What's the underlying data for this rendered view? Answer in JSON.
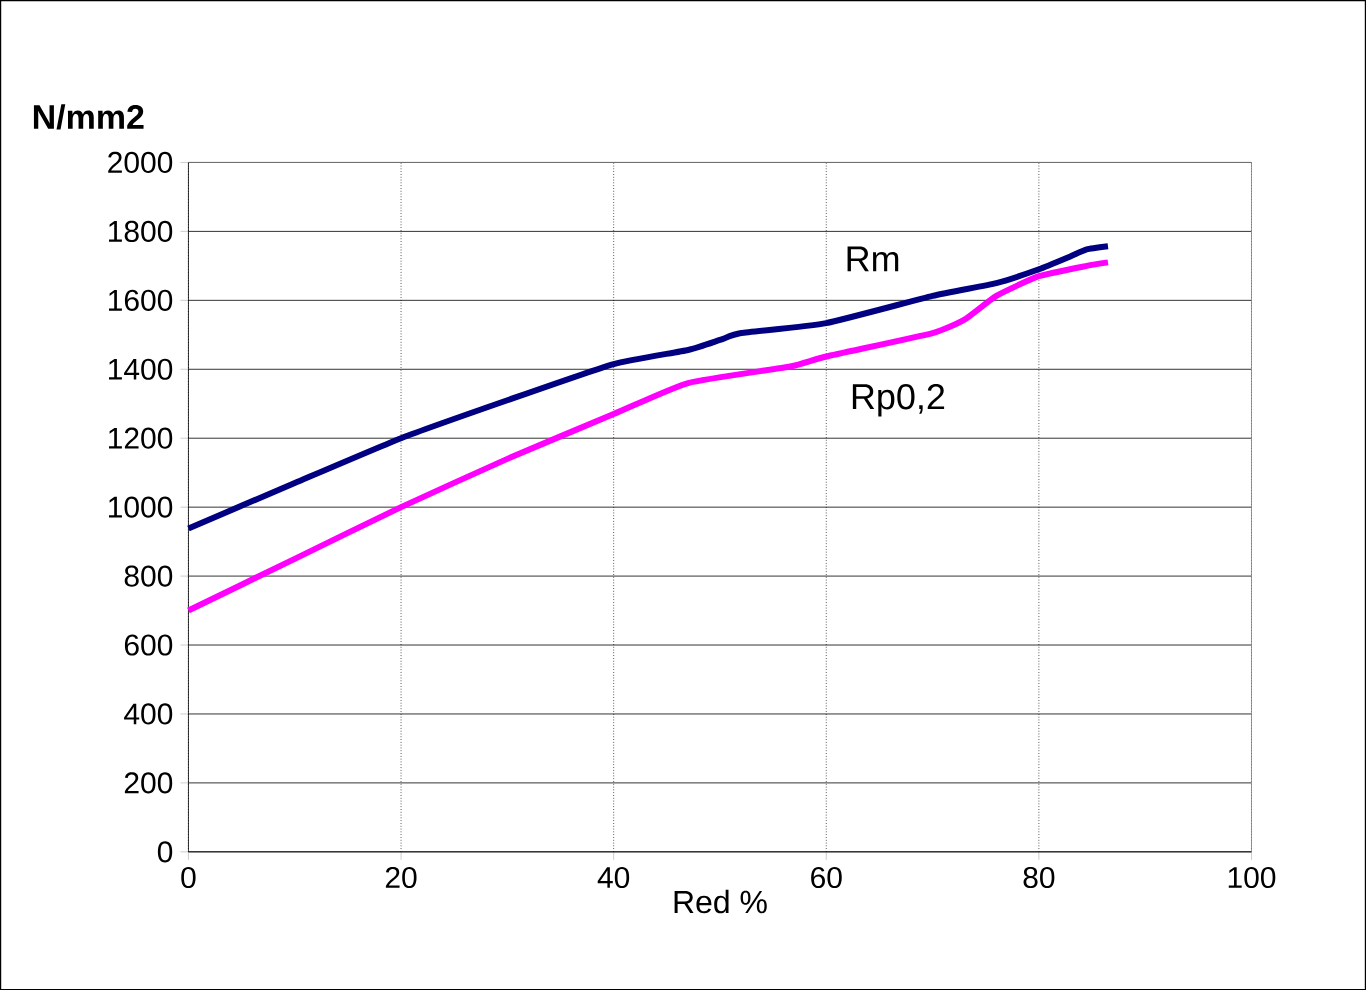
{
  "chart_data": {
    "type": "line",
    "title": "N/mm2",
    "xlabel": "Red %",
    "xlim": [
      0,
      100
    ],
    "xticks": [
      0,
      20,
      40,
      60,
      80,
      100
    ],
    "ylim": [
      0,
      2000
    ],
    "yticks": [
      0,
      200,
      400,
      600,
      800,
      1000,
      1200,
      1400,
      1600,
      1800,
      2000
    ],
    "grid": true,
    "legend": false,
    "marker": "none",
    "line_style": "solid",
    "series": [
      {
        "name": "Rm",
        "color": "#000080",
        "x": [
          0,
          10,
          20,
          30,
          40,
          47,
          50,
          52,
          60,
          70,
          76,
          80,
          83,
          84.5,
          86.5
        ],
        "values": [
          938,
          1070,
          1200,
          1310,
          1415,
          1456,
          1485,
          1505,
          1534,
          1613,
          1650,
          1690,
          1728,
          1748,
          1757
        ]
      },
      {
        "name": "Rp0,2",
        "color": "#ff00ff",
        "x": [
          0,
          10,
          20,
          30,
          40,
          47,
          56.6,
          60,
          70,
          73,
          76,
          80,
          84.5,
          86.5
        ],
        "values": [
          700,
          850,
          1000,
          1140,
          1270,
          1360,
          1408,
          1437,
          1505,
          1544,
          1613,
          1670,
          1700,
          1710
        ]
      }
    ]
  }
}
